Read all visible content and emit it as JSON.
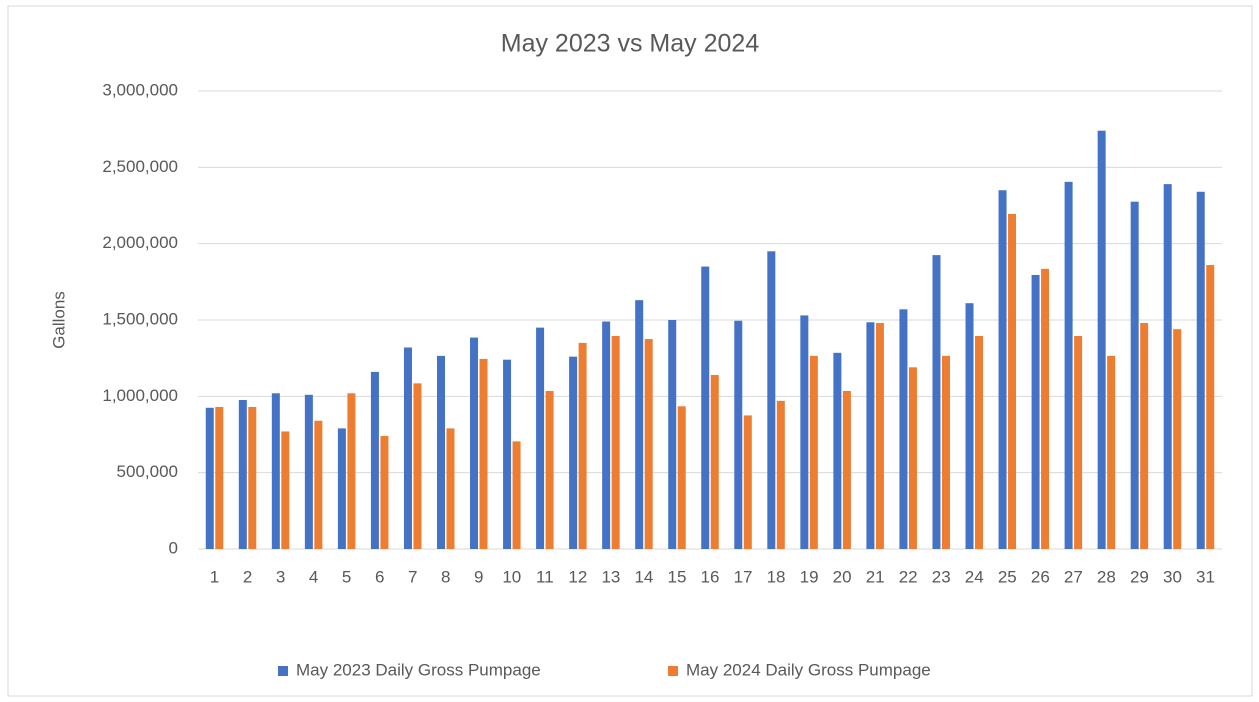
{
  "chart_data": {
    "type": "bar",
    "title": "May 2023 vs May 2024",
    "y_label": "Gallons",
    "categories": [
      "1",
      "2",
      "3",
      "4",
      "5",
      "6",
      "7",
      "8",
      "9",
      "10",
      "11",
      "12",
      "13",
      "14",
      "15",
      "16",
      "17",
      "18",
      "19",
      "20",
      "21",
      "22",
      "23",
      "24",
      "25",
      "26",
      "27",
      "28",
      "29",
      "30",
      "31"
    ],
    "series": [
      {
        "name": "May 2023 Daily Gross Pumpage",
        "color": "#4472c4",
        "values": [
          925000,
          976000,
          1020000,
          1010000,
          790000,
          1160000,
          1320000,
          1265000,
          1385000,
          1240000,
          1450000,
          1260000,
          1490000,
          1630000,
          1500000,
          1850000,
          1495000,
          1950000,
          1530000,
          1285000,
          1485000,
          1570000,
          1925000,
          1610000,
          2350000,
          1795000,
          2405000,
          2740000,
          2275000,
          2390000,
          2340000
        ]
      },
      {
        "name": "May 2024 Daily Gross Pumpage",
        "color": "#ed7d31",
        "values": [
          930000,
          930000,
          770000,
          840000,
          1020000,
          740000,
          1085000,
          790000,
          1245000,
          705000,
          1035000,
          1350000,
          1395000,
          1375000,
          935000,
          1140000,
          875000,
          970000,
          1265000,
          1035000,
          1480000,
          1190000,
          1265000,
          1395000,
          2195000,
          1835000,
          1395000,
          1265000,
          1480000,
          1440000,
          1860000
        ]
      }
    ],
    "ylim": [
      0,
      3000000
    ],
    "yticks": [
      0,
      {
        "value": 500000,
        "label": "500,000"
      },
      {
        "value": 1000000,
        "label": "1,000,000"
      },
      {
        "value": 1500000,
        "label": "1,500,000"
      },
      {
        "value": 2000000,
        "label": "2,000,000"
      },
      {
        "value": 2500000,
        "label": "2,500,000"
      },
      {
        "value": 3000000,
        "label": "3,000,000"
      }
    ],
    "grid": true,
    "legend": "bottom"
  }
}
